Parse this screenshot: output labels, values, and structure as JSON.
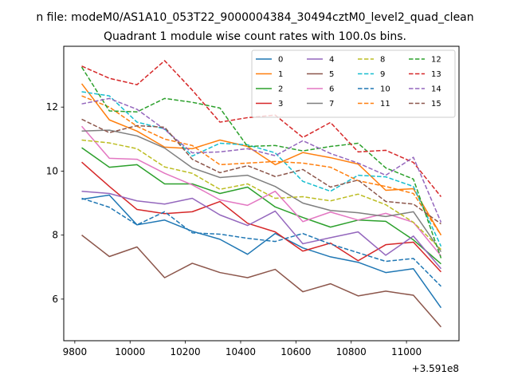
{
  "chart_data": {
    "type": "line",
    "suptitle": "n file: modeM0/AS1A10_053T22_9000004384_30494cztM0_level2_quad_clean",
    "title": "Quadrant 1 module wise count rates with 100.0s bins.",
    "xlabel": "",
    "ylabel": "",
    "x_offset_label": "+3.591e8",
    "x": [
      9825,
      9925,
      10025,
      10125,
      10225,
      10325,
      10425,
      10525,
      10625,
      10725,
      10825,
      10925,
      11025,
      11125
    ],
    "xlim": [
      9760,
      11190
    ],
    "ylim": [
      4.7,
      13.9
    ],
    "xticks": [
      9800,
      10000,
      10200,
      10400,
      10600,
      10800,
      11000
    ],
    "xtick_labels": [
      "9800",
      "10000",
      "10200",
      "10400",
      "10600",
      "10800",
      "11000"
    ],
    "yticks": [
      6,
      8,
      10,
      12
    ],
    "ytick_labels": [
      "6",
      "8",
      "10",
      "12"
    ],
    "grid": false,
    "legend_position": "top-right",
    "legend_columns": 4,
    "series": [
      {
        "name": "0",
        "color": "#1f77b4",
        "style": "solid",
        "values": [
          9.12,
          9.25,
          8.32,
          8.47,
          8.12,
          7.87,
          7.4,
          8.05,
          7.6,
          7.32,
          7.15,
          6.83,
          6.95,
          5.73
        ]
      },
      {
        "name": "1",
        "color": "#ff7f0e",
        "style": "solid",
        "values": [
          12.73,
          11.6,
          11.25,
          10.75,
          10.7,
          10.97,
          10.77,
          10.2,
          10.58,
          10.42,
          10.22,
          9.4,
          9.45,
          8.0
        ]
      },
      {
        "name": "2",
        "color": "#2ca02c",
        "style": "solid",
        "values": [
          10.73,
          10.12,
          10.2,
          9.6,
          9.6,
          9.3,
          9.5,
          8.88,
          8.55,
          8.25,
          8.47,
          8.43,
          7.85,
          7.1
        ]
      },
      {
        "name": "3",
        "color": "#d62728",
        "style": "solid",
        "values": [
          10.28,
          9.52,
          8.8,
          8.67,
          8.73,
          9.05,
          8.37,
          8.1,
          7.5,
          7.75,
          7.2,
          7.7,
          7.78,
          6.85
        ]
      },
      {
        "name": "4",
        "color": "#9467bd",
        "style": "solid",
        "values": [
          9.37,
          9.3,
          9.07,
          8.97,
          9.15,
          8.63,
          8.3,
          8.75,
          7.73,
          7.92,
          8.1,
          7.37,
          7.97,
          6.95
        ]
      },
      {
        "name": "5",
        "color": "#8c564b",
        "style": "solid",
        "values": [
          8.0,
          7.33,
          7.63,
          6.67,
          7.12,
          6.83,
          6.67,
          6.93,
          6.23,
          6.48,
          6.1,
          6.25,
          6.12,
          5.13
        ]
      },
      {
        "name": "6",
        "color": "#e377c2",
        "style": "solid",
        "values": [
          11.4,
          10.4,
          10.37,
          9.93,
          9.57,
          9.1,
          8.93,
          9.37,
          8.42,
          8.72,
          8.47,
          8.68,
          8.4,
          7.35
        ]
      },
      {
        "name": "7",
        "color": "#7f7f7f",
        "style": "solid",
        "values": [
          11.25,
          11.28,
          11.1,
          10.72,
          10.1,
          9.8,
          9.87,
          9.52,
          9.0,
          8.77,
          8.7,
          8.58,
          8.73,
          7.48
        ]
      },
      {
        "name": "8",
        "color": "#bcbd22",
        "style": "dashed",
        "values": [
          10.97,
          10.88,
          10.7,
          10.13,
          9.93,
          9.43,
          9.6,
          9.15,
          9.2,
          9.07,
          9.28,
          8.95,
          8.4,
          7.55
        ]
      },
      {
        "name": "9",
        "color": "#17becf",
        "style": "dashed",
        "values": [
          12.48,
          12.35,
          11.53,
          11.32,
          10.47,
          10.87,
          10.82,
          10.57,
          9.68,
          9.37,
          9.87,
          9.82,
          9.52,
          7.65
        ]
      },
      {
        "name": "10",
        "color": "#1f77b4",
        "style": "dashed",
        "values": [
          9.15,
          8.87,
          8.32,
          8.73,
          8.07,
          8.03,
          7.9,
          7.8,
          8.05,
          7.72,
          7.45,
          7.18,
          7.27,
          6.4
        ]
      },
      {
        "name": "11",
        "color": "#ff7f0e",
        "style": "dashed",
        "values": [
          12.35,
          12.0,
          11.4,
          11.0,
          10.8,
          10.2,
          10.25,
          10.3,
          10.25,
          10.12,
          9.7,
          9.52,
          9.3,
          8.0
        ]
      },
      {
        "name": "12",
        "color": "#2ca02c",
        "style": "dashed",
        "values": [
          13.25,
          11.88,
          11.85,
          12.27,
          12.15,
          11.97,
          10.77,
          10.8,
          10.63,
          10.77,
          10.87,
          10.1,
          9.75,
          7.28
        ]
      },
      {
        "name": "13",
        "color": "#d62728",
        "style": "dashed",
        "values": [
          13.28,
          12.9,
          12.7,
          13.45,
          12.53,
          11.53,
          11.67,
          11.75,
          11.05,
          11.52,
          10.6,
          10.65,
          10.27,
          9.2
        ]
      },
      {
        "name": "14",
        "color": "#9467bd",
        "style": "dashed",
        "values": [
          12.1,
          12.27,
          11.93,
          11.3,
          10.57,
          10.6,
          10.7,
          10.48,
          10.95,
          10.55,
          10.25,
          9.87,
          10.43,
          8.4
        ]
      },
      {
        "name": "15",
        "color": "#8c564b",
        "style": "dashed",
        "values": [
          11.62,
          11.2,
          11.42,
          11.37,
          10.37,
          9.95,
          10.17,
          9.83,
          10.05,
          9.5,
          9.72,
          9.05,
          8.97,
          8.35
        ]
      }
    ]
  }
}
